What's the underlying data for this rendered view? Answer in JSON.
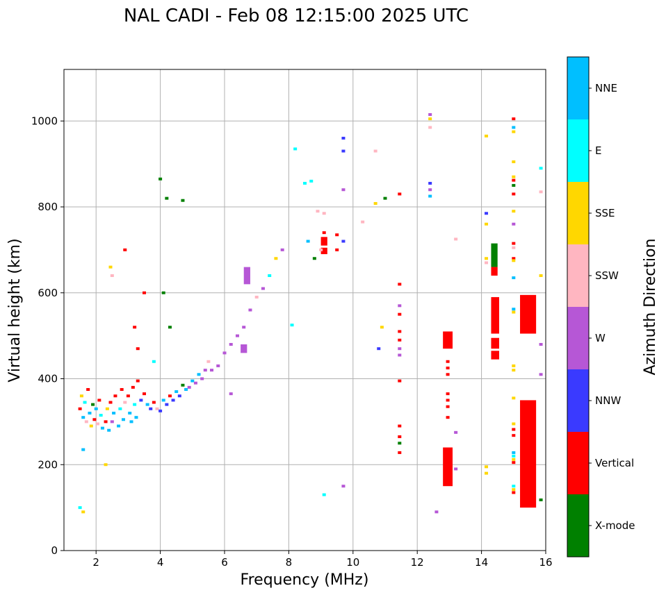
{
  "chart_data": {
    "type": "scatter",
    "title": "NAL CADI - Feb 08 12:15:00 2025 UTC",
    "xlabel": "Frequency (MHz)",
    "ylabel": "Virtual height (km)",
    "xlim": [
      1,
      16
    ],
    "ylim": [
      0,
      1120
    ],
    "xticks": [
      "2",
      "4",
      "6",
      "8",
      "10",
      "12",
      "14",
      "16"
    ],
    "yticks": [
      "0",
      "200",
      "400",
      "600",
      "800",
      "1000"
    ],
    "grid": true,
    "colorbar": {
      "label": "Azimuth Direction",
      "position": "right",
      "categories": [
        {
          "name": "X-mode",
          "color": "#008000"
        },
        {
          "name": "Vertical",
          "color": "#ff0000"
        },
        {
          "name": "NNW",
          "color": "#3a3aff"
        },
        {
          "name": "W",
          "color": "#b657d6"
        },
        {
          "name": "SSW",
          "color": "#ffb6c1"
        },
        {
          "name": "SSE",
          "color": "#ffd700"
        },
        {
          "name": "E",
          "color": "#00ffff"
        },
        {
          "name": "NNE",
          "color": "#00bfff"
        }
      ]
    },
    "scattered_echoes": [
      {
        "f": 1.5,
        "h": 330,
        "c": "Vertical"
      },
      {
        "f": 1.55,
        "h": 360,
        "c": "SSE"
      },
      {
        "f": 1.6,
        "h": 310,
        "c": "NNE"
      },
      {
        "f": 1.65,
        "h": 345,
        "c": "E"
      },
      {
        "f": 1.7,
        "h": 300,
        "c": "SSW"
      },
      {
        "f": 1.75,
        "h": 375,
        "c": "Vertical"
      },
      {
        "f": 1.8,
        "h": 320,
        "c": "NNE"
      },
      {
        "f": 1.85,
        "h": 290,
        "c": "SSE"
      },
      {
        "f": 1.9,
        "h": 340,
        "c": "X-mode"
      },
      {
        "f": 1.95,
        "h": 305,
        "c": "Vertical"
      },
      {
        "f": 2.0,
        "h": 330,
        "c": "NNE"
      },
      {
        "f": 2.05,
        "h": 295,
        "c": "SSW"
      },
      {
        "f": 2.1,
        "h": 350,
        "c": "Vertical"
      },
      {
        "f": 2.15,
        "h": 315,
        "c": "E"
      },
      {
        "f": 2.2,
        "h": 285,
        "c": "NNE"
      },
      {
        "f": 2.3,
        "h": 300,
        "c": "Vertical"
      },
      {
        "f": 2.35,
        "h": 330,
        "c": "SSE"
      },
      {
        "f": 2.4,
        "h": 280,
        "c": "NNE"
      },
      {
        "f": 2.45,
        "h": 345,
        "c": "Vertical"
      },
      {
        "f": 2.5,
        "h": 300,
        "c": "W"
      },
      {
        "f": 2.55,
        "h": 320,
        "c": "NNE"
      },
      {
        "f": 2.6,
        "h": 360,
        "c": "Vertical"
      },
      {
        "f": 2.7,
        "h": 290,
        "c": "NNE"
      },
      {
        "f": 2.75,
        "h": 330,
        "c": "E"
      },
      {
        "f": 2.8,
        "h": 375,
        "c": "Vertical"
      },
      {
        "f": 2.85,
        "h": 305,
        "c": "NNE"
      },
      {
        "f": 2.9,
        "h": 345,
        "c": "SSW"
      },
      {
        "f": 3.0,
        "h": 360,
        "c": "Vertical"
      },
      {
        "f": 3.05,
        "h": 320,
        "c": "NNE"
      },
      {
        "f": 3.1,
        "h": 300,
        "c": "NNE"
      },
      {
        "f": 3.15,
        "h": 380,
        "c": "Vertical"
      },
      {
        "f": 3.2,
        "h": 340,
        "c": "E"
      },
      {
        "f": 3.25,
        "h": 310,
        "c": "NNE"
      },
      {
        "f": 3.3,
        "h": 395,
        "c": "Vertical"
      },
      {
        "f": 3.4,
        "h": 350,
        "c": "NNW"
      },
      {
        "f": 3.5,
        "h": 365,
        "c": "Vertical"
      },
      {
        "f": 3.6,
        "h": 340,
        "c": "NNE"
      },
      {
        "f": 3.7,
        "h": 330,
        "c": "NNW"
      },
      {
        "f": 3.8,
        "h": 345,
        "c": "Vertical"
      },
      {
        "f": 3.9,
        "h": 330,
        "c": "SSW"
      },
      {
        "f": 4.0,
        "h": 325,
        "c": "NNW"
      },
      {
        "f": 4.1,
        "h": 350,
        "c": "NNE"
      },
      {
        "f": 4.2,
        "h": 340,
        "c": "NNW"
      },
      {
        "f": 4.3,
        "h": 360,
        "c": "Vertical"
      },
      {
        "f": 4.4,
        "h": 350,
        "c": "NNW"
      },
      {
        "f": 4.5,
        "h": 370,
        "c": "NNE"
      },
      {
        "f": 4.6,
        "h": 360,
        "c": "NNW"
      },
      {
        "f": 4.7,
        "h": 385,
        "c": "X-mode"
      },
      {
        "f": 4.8,
        "h": 375,
        "c": "NNE"
      },
      {
        "f": 4.9,
        "h": 380,
        "c": "W"
      },
      {
        "f": 5.0,
        "h": 395,
        "c": "NNE"
      },
      {
        "f": 5.1,
        "h": 390,
        "c": "W"
      },
      {
        "f": 5.2,
        "h": 410,
        "c": "NNE"
      },
      {
        "f": 5.3,
        "h": 400,
        "c": "W"
      },
      {
        "f": 5.4,
        "h": 420,
        "c": "W"
      },
      {
        "f": 5.5,
        "h": 440,
        "c": "SSW"
      },
      {
        "f": 5.6,
        "h": 420,
        "c": "W"
      },
      {
        "f": 5.8,
        "h": 430,
        "c": "W"
      },
      {
        "f": 6.0,
        "h": 460,
        "c": "W"
      },
      {
        "f": 6.2,
        "h": 480,
        "c": "W"
      },
      {
        "f": 6.4,
        "h": 500,
        "c": "W"
      },
      {
        "f": 6.6,
        "h": 520,
        "c": "W"
      },
      {
        "f": 6.8,
        "h": 560,
        "c": "W"
      },
      {
        "f": 7.0,
        "h": 590,
        "c": "SSW"
      },
      {
        "f": 7.2,
        "h": 610,
        "c": "W"
      },
      {
        "f": 7.4,
        "h": 640,
        "c": "E"
      },
      {
        "f": 7.6,
        "h": 680,
        "c": "SSE"
      },
      {
        "f": 7.8,
        "h": 700,
        "c": "W"
      },
      {
        "f": 2.45,
        "h": 660,
        "c": "SSE"
      },
      {
        "f": 2.5,
        "h": 640,
        "c": "SSW"
      },
      {
        "f": 2.9,
        "h": 700,
        "c": "Vertical"
      },
      {
        "f": 3.2,
        "h": 520,
        "c": "Vertical"
      },
      {
        "f": 3.3,
        "h": 470,
        "c": "Vertical"
      },
      {
        "f": 3.5,
        "h": 600,
        "c": "Vertical"
      },
      {
        "f": 3.8,
        "h": 440,
        "c": "E"
      },
      {
        "f": 4.0,
        "h": 865,
        "c": "X-mode"
      },
      {
        "f": 4.2,
        "h": 820,
        "c": "X-mode"
      },
      {
        "f": 4.7,
        "h": 815,
        "c": "X-mode"
      },
      {
        "f": 4.1,
        "h": 600,
        "c": "X-mode"
      },
      {
        "f": 4.3,
        "h": 520,
        "c": "X-mode"
      },
      {
        "f": 1.5,
        "h": 100,
        "c": "E"
      },
      {
        "f": 1.6,
        "h": 90,
        "c": "SSE"
      },
      {
        "f": 1.6,
        "h": 235,
        "c": "NNE"
      },
      {
        "f": 2.3,
        "h": 200,
        "c": "SSE"
      },
      {
        "f": 6.2,
        "h": 365,
        "c": "W"
      },
      {
        "f": 8.2,
        "h": 935,
        "c": "E"
      },
      {
        "f": 8.5,
        "h": 855,
        "c": "E"
      },
      {
        "f": 8.7,
        "h": 860,
        "c": "E"
      },
      {
        "f": 8.6,
        "h": 720,
        "c": "NNE"
      },
      {
        "f": 8.9,
        "h": 790,
        "c": "SSW"
      },
      {
        "f": 9.1,
        "h": 785,
        "c": "SSW"
      },
      {
        "f": 9.0,
        "h": 700,
        "c": "SSW"
      },
      {
        "f": 8.8,
        "h": 680,
        "c": "X-mode"
      },
      {
        "f": 9.1,
        "h": 740,
        "c": "Vertical"
      },
      {
        "f": 9.5,
        "h": 735,
        "c": "Vertical"
      },
      {
        "f": 9.5,
        "h": 700,
        "c": "Vertical"
      },
      {
        "f": 9.7,
        "h": 720,
        "c": "NNW"
      },
      {
        "f": 9.7,
        "h": 960,
        "c": "NNW"
      },
      {
        "f": 9.7,
        "h": 930,
        "c": "NNW"
      },
      {
        "f": 9.7,
        "h": 840,
        "c": "W"
      },
      {
        "f": 10.3,
        "h": 765,
        "c": "SSW"
      },
      {
        "f": 10.7,
        "h": 930,
        "c": "SSW"
      },
      {
        "f": 10.7,
        "h": 808,
        "c": "SSE"
      },
      {
        "f": 11.0,
        "h": 820,
        "c": "X-mode"
      },
      {
        "f": 10.9,
        "h": 520,
        "c": "SSE"
      },
      {
        "f": 10.8,
        "h": 470,
        "c": "NNW"
      },
      {
        "f": 8.1,
        "h": 525,
        "c": "E"
      },
      {
        "f": 9.1,
        "h": 130,
        "c": "E"
      },
      {
        "f": 9.7,
        "h": 150,
        "c": "W"
      },
      {
        "f": 11.45,
        "h": 830,
        "c": "Vertical"
      },
      {
        "f": 11.45,
        "h": 620,
        "c": "Vertical"
      },
      {
        "f": 11.45,
        "h": 570,
        "c": "W"
      },
      {
        "f": 11.45,
        "h": 550,
        "c": "Vertical"
      },
      {
        "f": 11.45,
        "h": 510,
        "c": "Vertical"
      },
      {
        "f": 11.45,
        "h": 490,
        "c": "Vertical"
      },
      {
        "f": 11.45,
        "h": 470,
        "c": "W"
      },
      {
        "f": 11.45,
        "h": 455,
        "c": "W"
      },
      {
        "f": 11.45,
        "h": 395,
        "c": "Vertical"
      },
      {
        "f": 11.45,
        "h": 290,
        "c": "Vertical"
      },
      {
        "f": 11.45,
        "h": 265,
        "c": "Vertical"
      },
      {
        "f": 11.45,
        "h": 250,
        "c": "X-mode"
      },
      {
        "f": 11.45,
        "h": 228,
        "c": "Vertical"
      },
      {
        "f": 12.4,
        "h": 1015,
        "c": "W"
      },
      {
        "f": 12.4,
        "h": 1005,
        "c": "SSE"
      },
      {
        "f": 12.4,
        "h": 985,
        "c": "SSW"
      },
      {
        "f": 12.4,
        "h": 855,
        "c": "NNW"
      },
      {
        "f": 12.4,
        "h": 840,
        "c": "W"
      },
      {
        "f": 12.4,
        "h": 825,
        "c": "NNE"
      },
      {
        "f": 12.6,
        "h": 90,
        "c": "W"
      },
      {
        "f": 13.2,
        "h": 725,
        "c": "SSW"
      },
      {
        "f": 13.2,
        "h": 275,
        "c": "W"
      },
      {
        "f": 13.2,
        "h": 190,
        "c": "W"
      },
      {
        "f": 12.95,
        "h": 440,
        "c": "Vertical"
      },
      {
        "f": 12.95,
        "h": 425,
        "c": "Vertical"
      },
      {
        "f": 12.95,
        "h": 410,
        "c": "Vertical"
      },
      {
        "f": 12.95,
        "h": 365,
        "c": "Vertical"
      },
      {
        "f": 12.95,
        "h": 350,
        "c": "Vertical"
      },
      {
        "f": 12.95,
        "h": 335,
        "c": "Vertical"
      },
      {
        "f": 12.95,
        "h": 310,
        "c": "Vertical"
      },
      {
        "f": 14.15,
        "h": 965,
        "c": "SSE"
      },
      {
        "f": 14.15,
        "h": 785,
        "c": "NNW"
      },
      {
        "f": 14.15,
        "h": 760,
        "c": "SSE"
      },
      {
        "f": 14.15,
        "h": 680,
        "c": "SSE"
      },
      {
        "f": 14.15,
        "h": 670,
        "c": "SSW"
      },
      {
        "f": 14.15,
        "h": 195,
        "c": "SSE"
      },
      {
        "f": 14.15,
        "h": 180,
        "c": "SSE"
      },
      {
        "f": 15.0,
        "h": 1005,
        "c": "Vertical"
      },
      {
        "f": 15.0,
        "h": 985,
        "c": "NNE"
      },
      {
        "f": 15.0,
        "h": 975,
        "c": "SSE"
      },
      {
        "f": 15.0,
        "h": 905,
        "c": "SSE"
      },
      {
        "f": 15.0,
        "h": 870,
        "c": "SSE"
      },
      {
        "f": 15.0,
        "h": 862,
        "c": "Vertical"
      },
      {
        "f": 15.0,
        "h": 850,
        "c": "X-mode"
      },
      {
        "f": 15.0,
        "h": 830,
        "c": "Vertical"
      },
      {
        "f": 15.0,
        "h": 790,
        "c": "SSE"
      },
      {
        "f": 15.0,
        "h": 760,
        "c": "W"
      },
      {
        "f": 15.0,
        "h": 715,
        "c": "Vertical"
      },
      {
        "f": 15.0,
        "h": 705,
        "c": "SSW"
      },
      {
        "f": 15.0,
        "h": 680,
        "c": "Vertical"
      },
      {
        "f": 15.0,
        "h": 675,
        "c": "SSE"
      },
      {
        "f": 15.0,
        "h": 635,
        "c": "NNE"
      },
      {
        "f": 15.0,
        "h": 562,
        "c": "NNE"
      },
      {
        "f": 15.0,
        "h": 555,
        "c": "SSE"
      },
      {
        "f": 15.0,
        "h": 430,
        "c": "SSE"
      },
      {
        "f": 15.0,
        "h": 420,
        "c": "SSE"
      },
      {
        "f": 15.0,
        "h": 355,
        "c": "SSE"
      },
      {
        "f": 15.0,
        "h": 295,
        "c": "SSE"
      },
      {
        "f": 15.0,
        "h": 282,
        "c": "Vertical"
      },
      {
        "f": 15.0,
        "h": 268,
        "c": "Vertical"
      },
      {
        "f": 15.0,
        "h": 228,
        "c": "NNE"
      },
      {
        "f": 15.0,
        "h": 220,
        "c": "E"
      },
      {
        "f": 15.0,
        "h": 212,
        "c": "SSE"
      },
      {
        "f": 15.0,
        "h": 205,
        "c": "Vertical"
      },
      {
        "f": 15.0,
        "h": 150,
        "c": "E"
      },
      {
        "f": 15.0,
        "h": 142,
        "c": "SSE"
      },
      {
        "f": 15.0,
        "h": 135,
        "c": "Vertical"
      },
      {
        "f": 15.85,
        "h": 890,
        "c": "E"
      },
      {
        "f": 15.85,
        "h": 835,
        "c": "SSW"
      },
      {
        "f": 15.85,
        "h": 640,
        "c": "SSE"
      },
      {
        "f": 15.85,
        "h": 480,
        "c": "W"
      },
      {
        "f": 15.85,
        "h": 410,
        "c": "W"
      },
      {
        "f": 15.85,
        "h": 118,
        "c": "X-mode"
      }
    ],
    "traces": [
      {
        "f0": 14.3,
        "f1": 14.5,
        "h0": 645,
        "h1": 665,
        "c": "SSW"
      },
      {
        "f0": 14.3,
        "f1": 14.5,
        "h0": 660,
        "h1": 715,
        "c": "X-mode"
      },
      {
        "f0": 14.3,
        "f1": 14.5,
        "h0": 640,
        "h1": 660,
        "c": "Vertical"
      },
      {
        "f0": 12.8,
        "f1": 13.1,
        "h0": 470,
        "h1": 510,
        "c": "Vertical"
      },
      {
        "f0": 12.8,
        "f1": 13.1,
        "h0": 150,
        "h1": 240,
        "c": "Vertical"
      },
      {
        "f0": 14.3,
        "f1": 14.55,
        "h0": 505,
        "h1": 590,
        "c": "Vertical"
      },
      {
        "f0": 14.3,
        "f1": 14.55,
        "h0": 470,
        "h1": 495,
        "c": "Vertical"
      },
      {
        "f0": 14.3,
        "f1": 14.55,
        "h0": 445,
        "h1": 465,
        "c": "Vertical"
      },
      {
        "f0": 15.2,
        "f1": 15.7,
        "h0": 505,
        "h1": 595,
        "c": "Vertical"
      },
      {
        "f0": 15.2,
        "f1": 15.7,
        "h0": 100,
        "h1": 350,
        "c": "Vertical"
      },
      {
        "f0": 9.0,
        "f1": 9.2,
        "h0": 690,
        "h1": 705,
        "c": "Vertical"
      },
      {
        "f0": 9.0,
        "f1": 9.2,
        "h0": 710,
        "h1": 730,
        "c": "Vertical"
      },
      {
        "f0": 6.5,
        "f1": 6.7,
        "h0": 460,
        "h1": 480,
        "c": "W"
      },
      {
        "f0": 6.6,
        "f1": 6.8,
        "h0": 620,
        "h1": 660,
        "c": "W"
      }
    ]
  }
}
